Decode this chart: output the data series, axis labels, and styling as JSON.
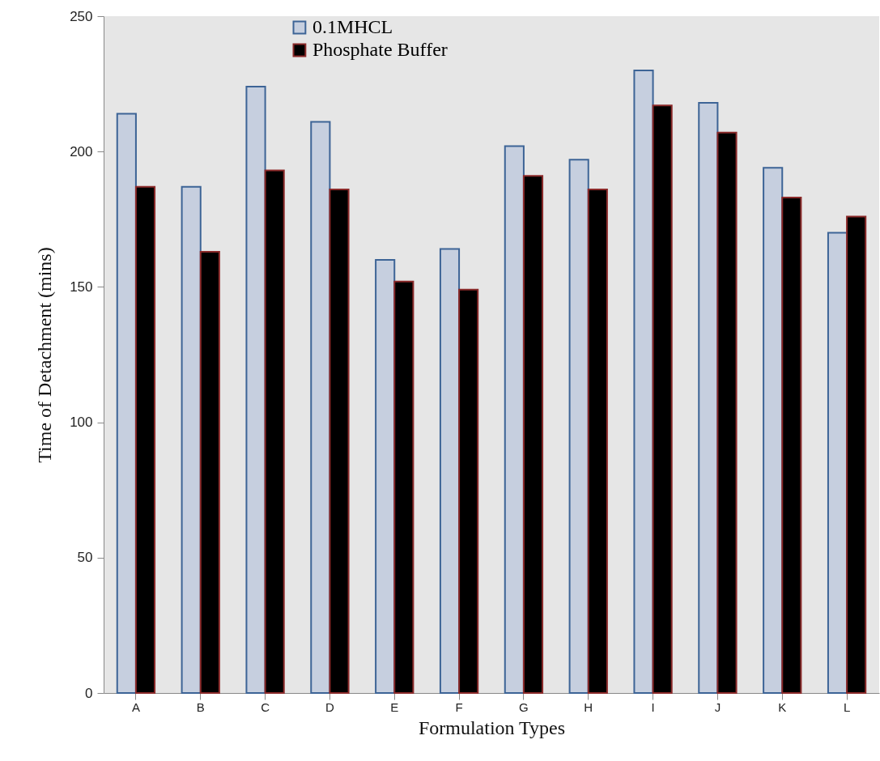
{
  "chart_data": {
    "type": "bar",
    "xlabel": "Formulation Types",
    "ylabel": "Time of Detachment (mins)",
    "categories": [
      "A",
      "B",
      "C",
      "D",
      "E",
      "F",
      "G",
      "H",
      "I",
      "J",
      "K",
      "L"
    ],
    "series": [
      {
        "name": "0.1MHCL",
        "color": "#c6cfdf",
        "values": [
          214,
          187,
          224,
          211,
          160,
          164,
          202,
          197,
          230,
          218,
          194,
          170
        ]
      },
      {
        "name": "Phosphate Buffer",
        "color": "#000000",
        "values": [
          187,
          163,
          193,
          186,
          152,
          149,
          191,
          186,
          217,
          207,
          183,
          176
        ]
      }
    ],
    "ylim": [
      0,
      250
    ],
    "yticks": [
      0,
      50,
      100,
      150,
      200,
      250
    ],
    "grid": false,
    "legend": "top"
  }
}
